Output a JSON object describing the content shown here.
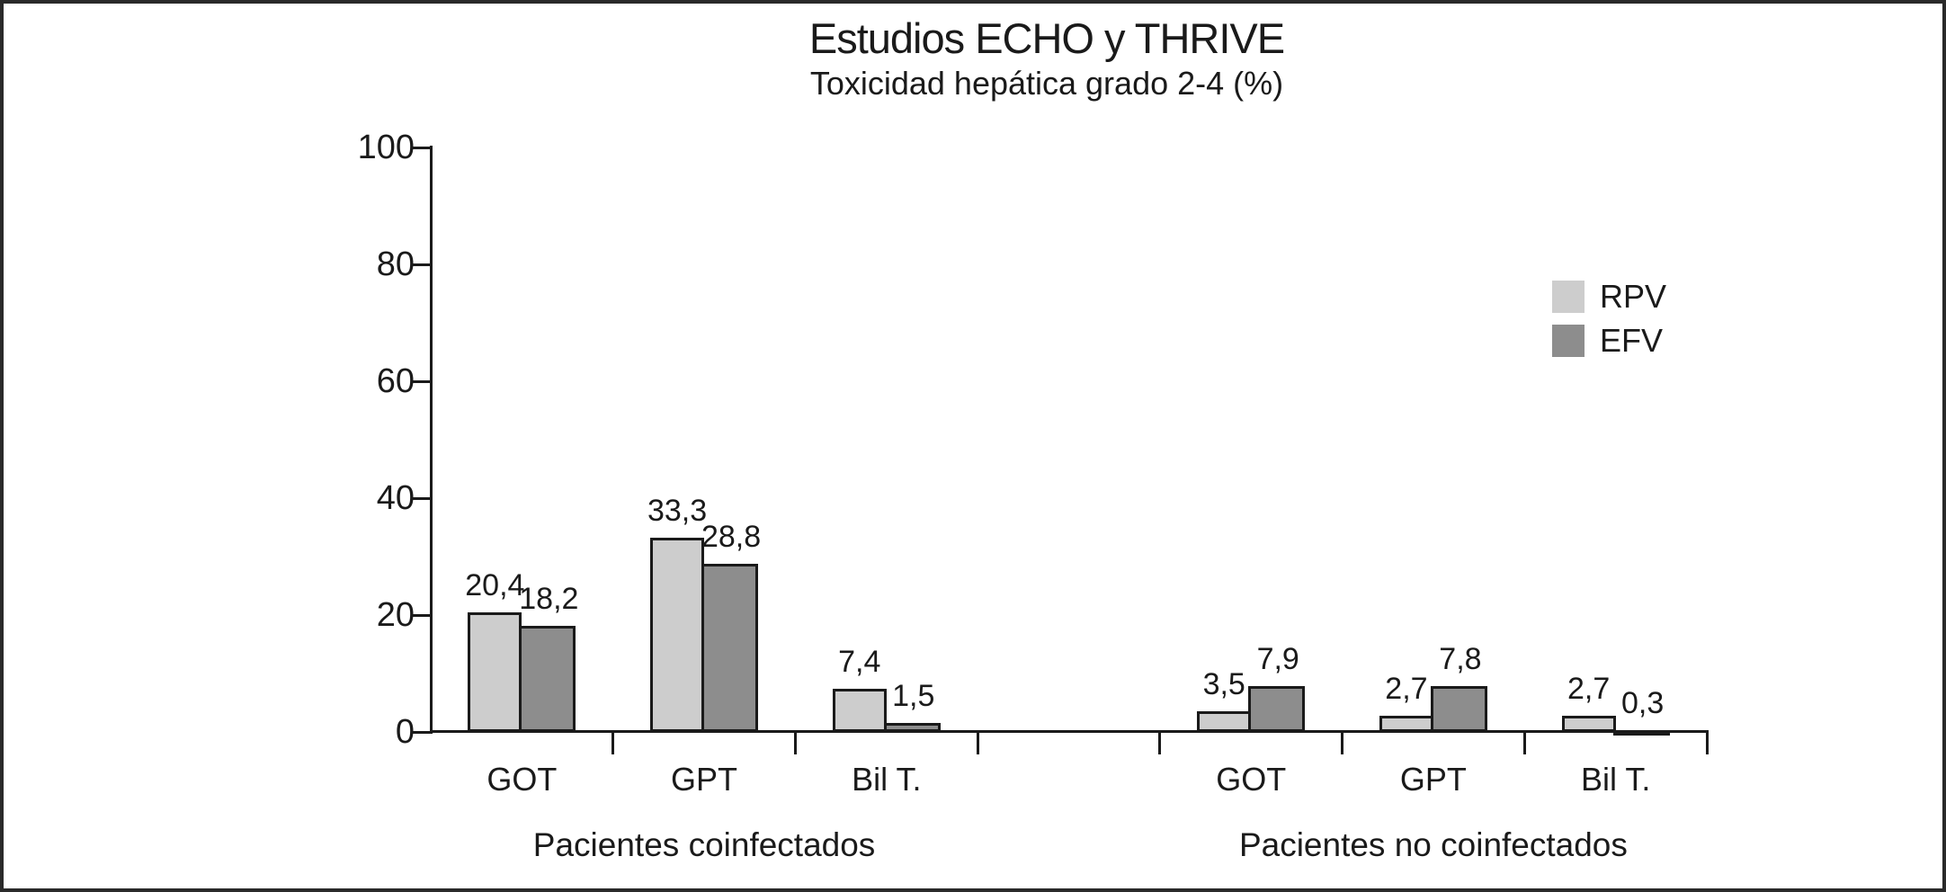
{
  "title": "Estudios ECHO y THRIVE",
  "subtitle": "Toxicidad hepática grado 2-4 (%)",
  "colors": {
    "rpv": "#cdcdcd",
    "efv": "#8d8d8d",
    "axis": "#1a1a1a",
    "frame": "#2a2a2a",
    "background": "#ffffff"
  },
  "chart_data": {
    "type": "bar",
    "title": "Estudios ECHO y THRIVE",
    "subtitle": "Toxicidad hepática grado 2-4 (%)",
    "ylim": [
      0,
      100
    ],
    "yticks": [
      0,
      20,
      40,
      60,
      80,
      100
    ],
    "xlabel": "",
    "ylabel": "",
    "grid": false,
    "decimal_separator": ",",
    "legend_position": "right",
    "legend": [
      {
        "label": "RPV",
        "color": "#cdcdcd"
      },
      {
        "label": "EFV",
        "color": "#8d8d8d"
      }
    ],
    "groups": [
      {
        "label": "Pacientes coinfectados",
        "categories": [
          "GOT",
          "GPT",
          "Bil T."
        ],
        "series": [
          {
            "name": "RPV",
            "values": [
              20.4,
              33.3,
              7.4
            ]
          },
          {
            "name": "EFV",
            "values": [
              18.2,
              28.8,
              1.5
            ]
          }
        ]
      },
      {
        "label": "Pacientes no coinfectados",
        "categories": [
          "GOT",
          "GPT",
          "Bil T."
        ],
        "series": [
          {
            "name": "RPV",
            "values": [
              3.5,
              2.7,
              2.7
            ]
          },
          {
            "name": "EFV",
            "values": [
              7.9,
              7.8,
              0.3
            ]
          }
        ]
      }
    ]
  }
}
